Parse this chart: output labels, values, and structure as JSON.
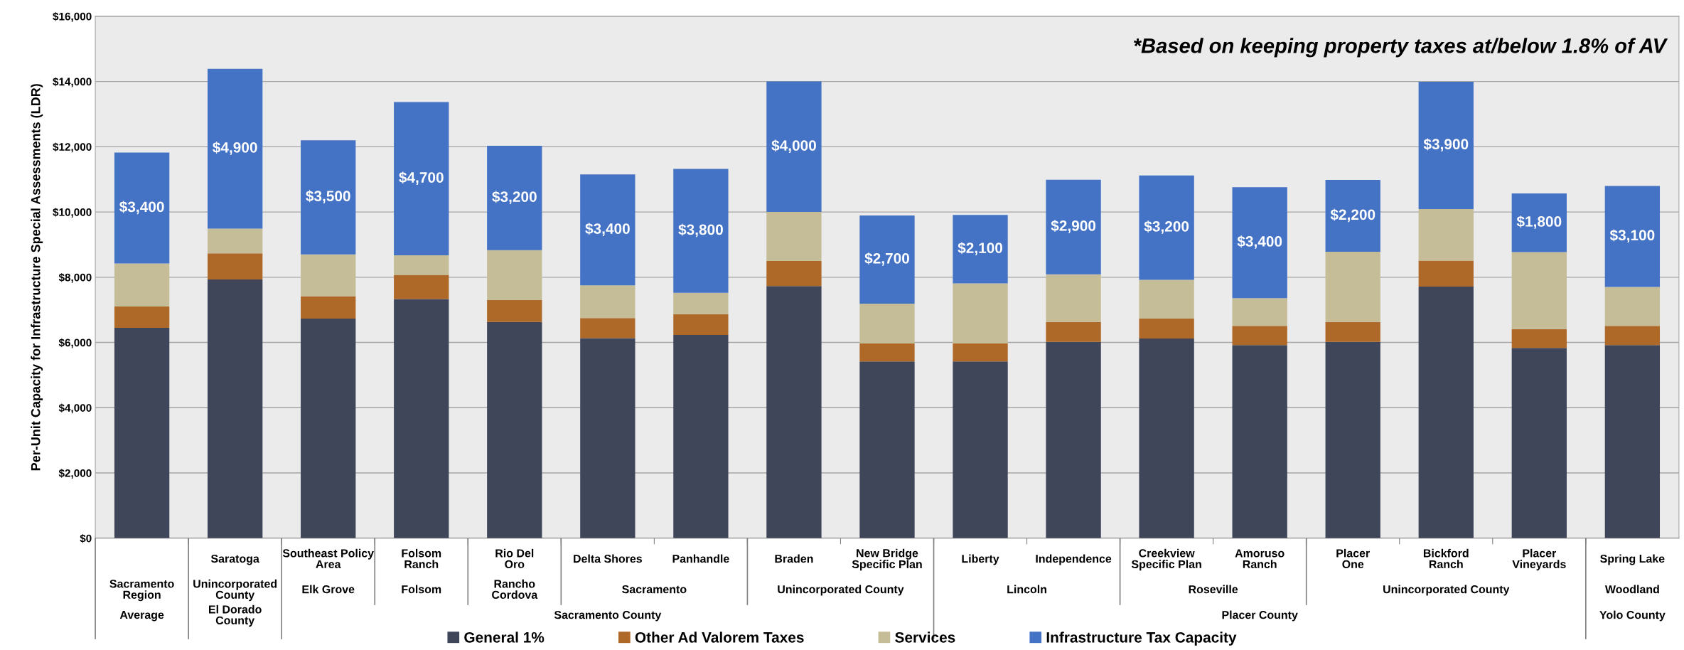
{
  "chart_data": {
    "type": "bar",
    "stacked": true,
    "ylabel": "Per-Unit Capacity for Infrastructure Special Assessments (LDR)",
    "categories": [
      null,
      "Saratoga",
      "Southeast Policy\nArea",
      "Folsom\nRanch",
      "Rio Del\nOro",
      "Delta Shores",
      "Panhandle",
      "Braden",
      "New Bridge\nSpecific Plan",
      "Liberty",
      "Independence",
      "Creekview\nSpecific Plan",
      "Amoruso\nRanch",
      "Placer\nOne",
      "Bickford\nRanch",
      "Placer\nVineyards",
      "Spring Lake"
    ],
    "series": [
      {
        "name": "General 1%",
        "color": "#404659",
        "values": [
          6450,
          7930,
          6730,
          7330,
          6630,
          6130,
          6230,
          7730,
          5420,
          5420,
          6020,
          6120,
          5920,
          6020,
          7710,
          5830,
          5920
        ]
      },
      {
        "name": "Other Ad Valorem Taxes",
        "color": "#ae6828",
        "values": [
          650,
          800,
          690,
          740,
          670,
          620,
          640,
          770,
          550,
          550,
          610,
          610,
          590,
          610,
          800,
          580,
          590
        ]
      },
      {
        "name": "Services",
        "color": "#c4bd97",
        "values": [
          1320,
          760,
          1280,
          600,
          1530,
          1000,
          650,
          1500,
          1220,
          1840,
          1460,
          1190,
          850,
          2150,
          1580,
          2360,
          1190
        ]
      },
      {
        "name": "Infrastructure Tax Capacity",
        "color": "#4472c4",
        "values": [
          3400,
          4900,
          3500,
          4700,
          3200,
          3400,
          3800,
          4000,
          2700,
          2100,
          2900,
          3200,
          3400,
          2200,
          3900,
          1800,
          3100
        ],
        "value_labels": [
          "$3,400",
          "$4,900",
          "$3,500",
          "$4,700",
          "$3,200",
          "$3,400",
          "$3,800",
          "$4,000",
          "$2,700",
          "$2,100",
          "$2,900",
          "$3,200",
          "$3,400",
          "$2,200",
          "$3,900",
          "$1,800",
          "$3,100"
        ]
      }
    ],
    "ylim": [
      0,
      16000
    ],
    "yticks": [
      {
        "value": 0,
        "label": "$0"
      },
      {
        "value": 2000,
        "label": "$2,000"
      },
      {
        "value": 4000,
        "label": "$4,000"
      },
      {
        "value": 6000,
        "label": "$6,000"
      },
      {
        "value": 8000,
        "label": "$8,000"
      },
      {
        "value": 10000,
        "label": "$10,000"
      },
      {
        "value": 12000,
        "label": "$12,000"
      },
      {
        "value": 14000,
        "label": "$14,000"
      },
      {
        "value": 16000,
        "label": "$16,000"
      }
    ],
    "grid": "y",
    "legend": "bottom",
    "annotations": [
      "*Based on keeping property taxes at/below 1.8% of AV",
      "Sacramento\nRegion",
      "Unincorporated\nCounty",
      "Elk Grove",
      "Folsom",
      "Rancho\nCordova",
      "Sacramento",
      "Unincorporated County",
      "Lincoln",
      "Roseville",
      "Unincorporated County",
      "Woodland",
      "Average",
      "El Dorado\nCounty",
      "Sacramento County",
      "Placer County",
      "Yolo County"
    ]
  }
}
